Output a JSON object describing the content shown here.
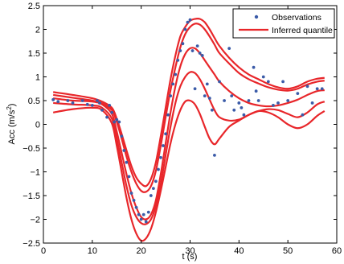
{
  "chart_data": {
    "type": "line",
    "xlabel": "t (s)",
    "ylabel_base": "Acc (m/s",
    "ylabel_sup": "2",
    "ylabel_close": ")",
    "xlim": [
      0,
      60
    ],
    "ylim": [
      -2.5,
      2.5
    ],
    "xticks": [
      0,
      10,
      20,
      30,
      40,
      50,
      60
    ],
    "yticks": [
      -2.5,
      -2,
      -1.5,
      -1,
      -0.5,
      0,
      0.5,
      1,
      1.5,
      2,
      2.5
    ],
    "xtick_labels": [
      "0",
      "10",
      "20",
      "30",
      "40",
      "50",
      "60"
    ],
    "ytick_labels": [
      "−2.5",
      "−2",
      "−1.5",
      "−1",
      "−0.5",
      "0",
      "0.5",
      "1",
      "1.5",
      "2",
      "2.5"
    ],
    "grid": false,
    "legend": {
      "position": "top-right",
      "entries": [
        {
          "label": "Observations",
          "kind": "marker",
          "color": "#3b5ba8"
        },
        {
          "label": "Inferred quantile",
          "kind": "line",
          "color": "#e8262a"
        }
      ]
    },
    "observation_color": "#3b5ba8",
    "quantile_color": "#e8262a",
    "quantile_curves": [
      {
        "x": [
          2,
          6,
          10,
          12,
          14,
          15,
          16,
          17,
          18,
          19,
          20,
          21,
          22,
          23,
          24,
          25,
          26,
          27,
          28,
          29,
          30,
          31,
          32,
          33,
          34,
          35,
          36,
          38,
          40,
          42,
          44,
          46,
          48,
          50,
          52,
          54,
          56,
          57.5
        ],
        "y": [
          0.68,
          0.62,
          0.55,
          0.48,
          0.35,
          0.12,
          -0.2,
          -0.55,
          -0.88,
          -1.12,
          -1.25,
          -1.3,
          -1.15,
          -0.8,
          -0.25,
          0.35,
          0.95,
          1.45,
          1.85,
          2.05,
          2.18,
          2.22,
          2.22,
          2.15,
          2.0,
          1.82,
          1.65,
          1.4,
          1.2,
          1.05,
          0.95,
          0.85,
          0.78,
          0.75,
          0.8,
          0.9,
          0.96,
          0.98
        ]
      },
      {
        "x": [
          2,
          6,
          10,
          12,
          14,
          15,
          16,
          17,
          18,
          19,
          20,
          21,
          22,
          23,
          24,
          25,
          26,
          27,
          28,
          29,
          30,
          31,
          32,
          33,
          34,
          35,
          36,
          38,
          40,
          42,
          44,
          46,
          48,
          50,
          52,
          54,
          56,
          57.5
        ],
        "y": [
          0.62,
          0.56,
          0.5,
          0.44,
          0.3,
          0.05,
          -0.3,
          -0.68,
          -1.0,
          -1.25,
          -1.4,
          -1.42,
          -1.3,
          -0.98,
          -0.45,
          0.15,
          0.72,
          1.2,
          1.62,
          1.9,
          2.05,
          2.12,
          2.1,
          2.0,
          1.85,
          1.68,
          1.5,
          1.28,
          1.08,
          0.95,
          0.86,
          0.78,
          0.73,
          0.71,
          0.75,
          0.84,
          0.9,
          0.92
        ]
      },
      {
        "x": [
          2,
          6,
          10,
          12,
          14,
          15,
          16,
          17,
          18,
          19,
          20,
          21,
          22,
          23,
          24,
          25,
          26,
          27,
          28,
          29,
          30,
          31,
          32,
          33,
          34,
          35,
          36,
          38,
          40,
          42,
          44,
          46,
          48,
          50,
          52,
          54,
          56,
          57.5
        ],
        "y": [
          0.55,
          0.5,
          0.48,
          0.42,
          0.22,
          -0.15,
          -0.6,
          -1.05,
          -1.45,
          -1.75,
          -1.95,
          -2.0,
          -1.9,
          -1.6,
          -1.05,
          -0.4,
          0.25,
          0.8,
          1.22,
          1.48,
          1.6,
          1.6,
          1.5,
          1.35,
          1.2,
          1.05,
          0.9,
          0.7,
          0.55,
          0.45,
          0.4,
          0.38,
          0.4,
          0.45,
          0.52,
          0.62,
          0.7,
          0.72
        ]
      },
      {
        "x": [
          2,
          6,
          10,
          12,
          14,
          15,
          16,
          17,
          18,
          19,
          20,
          21,
          22,
          23,
          24,
          25,
          26,
          27,
          28,
          29,
          30,
          31,
          32,
          33,
          34,
          35,
          36,
          38,
          40,
          42,
          44,
          46,
          48,
          50,
          52,
          54,
          56,
          57.5
        ],
        "y": [
          0.45,
          0.42,
          0.4,
          0.35,
          0.12,
          -0.3,
          -0.8,
          -1.3,
          -1.7,
          -1.95,
          -2.08,
          -2.1,
          -2.0,
          -1.72,
          -1.25,
          -0.65,
          -0.05,
          0.45,
          0.8,
          1.0,
          1.1,
          1.08,
          0.95,
          0.75,
          0.52,
          0.3,
          0.15,
          0.08,
          0.1,
          0.2,
          0.28,
          0.32,
          0.3,
          0.22,
          0.15,
          0.25,
          0.42,
          0.48
        ]
      },
      {
        "x": [
          2,
          6,
          10,
          12,
          14,
          15,
          16,
          17,
          18,
          19,
          20,
          21,
          22,
          23,
          24,
          25,
          26,
          27,
          28,
          29,
          30,
          31,
          32,
          33,
          34,
          35,
          36,
          38,
          40,
          42,
          44,
          46,
          48,
          50,
          52,
          54,
          56,
          57.5
        ],
        "y": [
          0.25,
          0.32,
          0.35,
          0.3,
          0.02,
          -0.45,
          -1.0,
          -1.55,
          -2.0,
          -2.3,
          -2.45,
          -2.4,
          -2.2,
          -1.85,
          -1.4,
          -0.9,
          -0.4,
          0.0,
          0.3,
          0.48,
          0.5,
          0.42,
          0.22,
          -0.05,
          -0.3,
          -0.42,
          -0.3,
          -0.05,
          0.08,
          0.2,
          0.28,
          0.25,
          0.15,
          0.0,
          -0.08,
          0.0,
          0.18,
          0.28
        ]
      }
    ],
    "observations": {
      "x": [
        2,
        3,
        5,
        6,
        8,
        9,
        10,
        11,
        11.5,
        12,
        13,
        13.5,
        14,
        14.5,
        15,
        15.5,
        16,
        16.5,
        17,
        17.5,
        18,
        18.5,
        19,
        19.5,
        20,
        20.5,
        21,
        21.5,
        22,
        22.5,
        23,
        23.5,
        24,
        24.5,
        25,
        25.5,
        26,
        26.5,
        27,
        27.5,
        28,
        28.5,
        29,
        29.5,
        30,
        30.5,
        31,
        31.5,
        32,
        32.5,
        33,
        33.5,
        34,
        34.5,
        35,
        36,
        37,
        38,
        38.5,
        39,
        40,
        40.5,
        41,
        42,
        43,
        43.5,
        44,
        45,
        46,
        47,
        48,
        49,
        50,
        52,
        53,
        54,
        55,
        56,
        57
      ],
      "y": [
        0.52,
        0.48,
        0.5,
        0.45,
        0.5,
        0.42,
        0.4,
        0.5,
        0.45,
        0.3,
        0.15,
        0.4,
        0.25,
        0.05,
        0.1,
        0.05,
        -0.25,
        -0.55,
        -0.8,
        -1.1,
        -1.45,
        -1.6,
        -1.75,
        -1.9,
        -2.0,
        -1.9,
        -2.05,
        -1.85,
        -1.5,
        -1.35,
        -1.2,
        -0.95,
        -0.7,
        -0.45,
        -0.2,
        0.2,
        0.6,
        0.85,
        1.05,
        1.35,
        1.55,
        1.7,
        2.0,
        2.15,
        2.2,
        1.55,
        0.75,
        1.65,
        1.5,
        1.45,
        0.6,
        0.85,
        0.55,
        0.3,
        -0.65,
        0.9,
        0.5,
        1.6,
        0.6,
        0.3,
        0.45,
        0.35,
        0.2,
        0.5,
        1.2,
        0.7,
        0.5,
        1.0,
        0.9,
        0.4,
        0.45,
        0.9,
        0.5,
        0.65,
        0.2,
        0.8,
        0.45,
        0.75,
        0.75
      ]
    }
  }
}
